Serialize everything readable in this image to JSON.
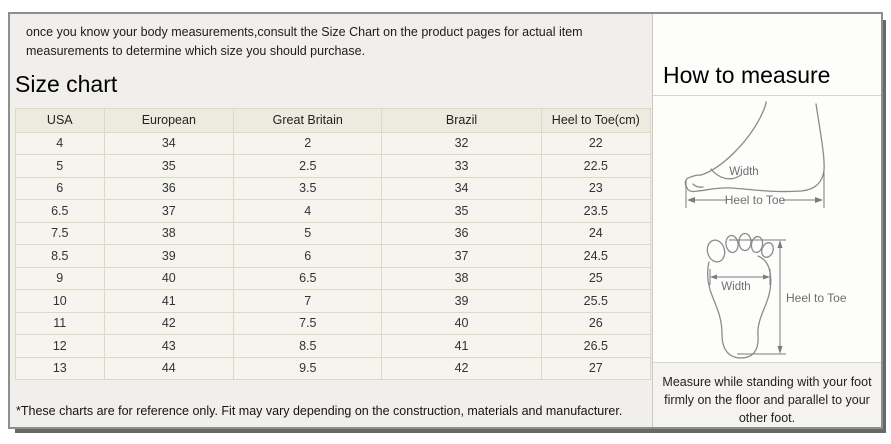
{
  "intro_text": "once you know your body measurements,consult the Size Chart on the product pages for actual item measurements to determine which size you should purchase.",
  "left": {
    "title": "Size chart",
    "footnote": "*These charts are for reference only. Fit may vary depending on the construction, materials and manufacturer."
  },
  "right": {
    "title": "How to measure",
    "note": "Measure while standing with your foot firmly on the floor and parallel to your other foot.",
    "side_view": {
      "width_label": "Width",
      "length_label": "Heel to Toe"
    },
    "footprint": {
      "width_label": "Width",
      "length_label": "Heel to Toe"
    }
  },
  "size_table": {
    "columns": [
      "USA",
      "European",
      "Great Britain",
      "Brazil",
      "Heel to Toe(cm)"
    ],
    "rows": [
      [
        "4",
        "34",
        "2",
        "32",
        "22"
      ],
      [
        "5",
        "35",
        "2.5",
        "33",
        "22.5"
      ],
      [
        "6",
        "36",
        "3.5",
        "34",
        "23"
      ],
      [
        "6.5",
        "37",
        "4",
        "35",
        "23.5"
      ],
      [
        "7.5",
        "38",
        "5",
        "36",
        "24"
      ],
      [
        "8.5",
        "39",
        "6",
        "37",
        "24.5"
      ],
      [
        "9",
        "40",
        "6.5",
        "38",
        "25"
      ],
      [
        "10",
        "41",
        "7",
        "39",
        "25.5"
      ],
      [
        "11",
        "42",
        "7.5",
        "40",
        "26"
      ],
      [
        "12",
        "43",
        "8.5",
        "41",
        "26.5"
      ],
      [
        "13",
        "44",
        "9.5",
        "42",
        "27"
      ]
    ]
  },
  "colors": {
    "frame_border": "#8e8e8e",
    "frame_shadow": "#686868",
    "panel_bg": "#f1efeb",
    "table_cell_bg": "#f5f4ef",
    "table_header_bg": "#edebdf",
    "table_border": "#d9dbc0",
    "sketch_line": "#8b8b8b"
  }
}
